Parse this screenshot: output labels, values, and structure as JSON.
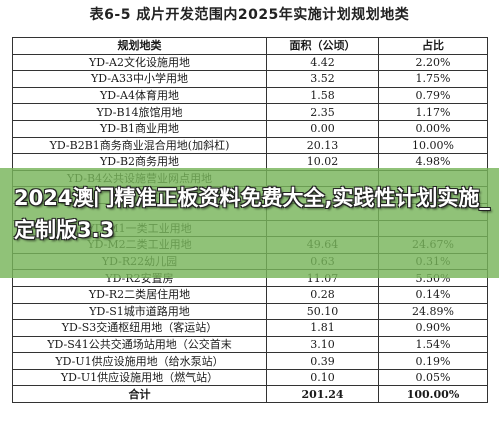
{
  "title": "表6-5 成片开发范围内2025年实施计划规划地类",
  "table": {
    "headers": [
      "规划地类",
      "面积（公顷）",
      "占比"
    ],
    "rows": [
      [
        "YD-A2文化设施用地",
        "4.42",
        "2.20%"
      ],
      [
        "YD-A33中小学用地",
        "3.52",
        "1.75%"
      ],
      [
        "YD-A4体育用地",
        "1.58",
        "0.79%"
      ],
      [
        "YD-B14旅馆用地",
        "2.35",
        "1.17%"
      ],
      [
        "YD-B1商业用地",
        "0.00",
        "0.00%"
      ],
      [
        "YD-B2B1商务商业混合用地(加斜杠)",
        "20.13",
        "10.00%"
      ],
      [
        "YD-B2商务用地",
        "10.02",
        "4.98%"
      ],
      [
        "YD-B4公共设施营业网点用地",
        "",
        ""
      ],
      [
        "",
        "",
        ""
      ],
      [
        "",
        "",
        ""
      ],
      [
        "YD-M1一类工业用地",
        "",
        ""
      ],
      [
        "YD-M2二类工业用地",
        "49.64",
        "24.67%"
      ],
      [
        "YD-R22幼儿园",
        "0.63",
        "0.31%"
      ],
      [
        "YD-R2安置房",
        "11.07",
        "5.50%"
      ],
      [
        "YD-R2二类居住用地",
        "0.28",
        "0.14%"
      ],
      [
        "YD-S1城市道路用地",
        "50.10",
        "24.89%"
      ],
      [
        "YD-S3交通枢纽用地（客运站）",
        "1.81",
        "0.90%"
      ],
      [
        "YD-S41公共交通场站用地（公交首末",
        "3.10",
        "1.54%"
      ],
      [
        "YD-U1供应设施用地（给水泵站）",
        "0.39",
        "0.19%"
      ],
      [
        "YD-U1供应设施用地（燃气站）",
        "0.10",
        "0.05%"
      ]
    ],
    "total": [
      "合计",
      "201.24",
      "100.00%"
    ]
  },
  "banner": {
    "text": "2024澳门精准正板资料免费大全,实践性计划实施_定制版3.3"
  }
}
